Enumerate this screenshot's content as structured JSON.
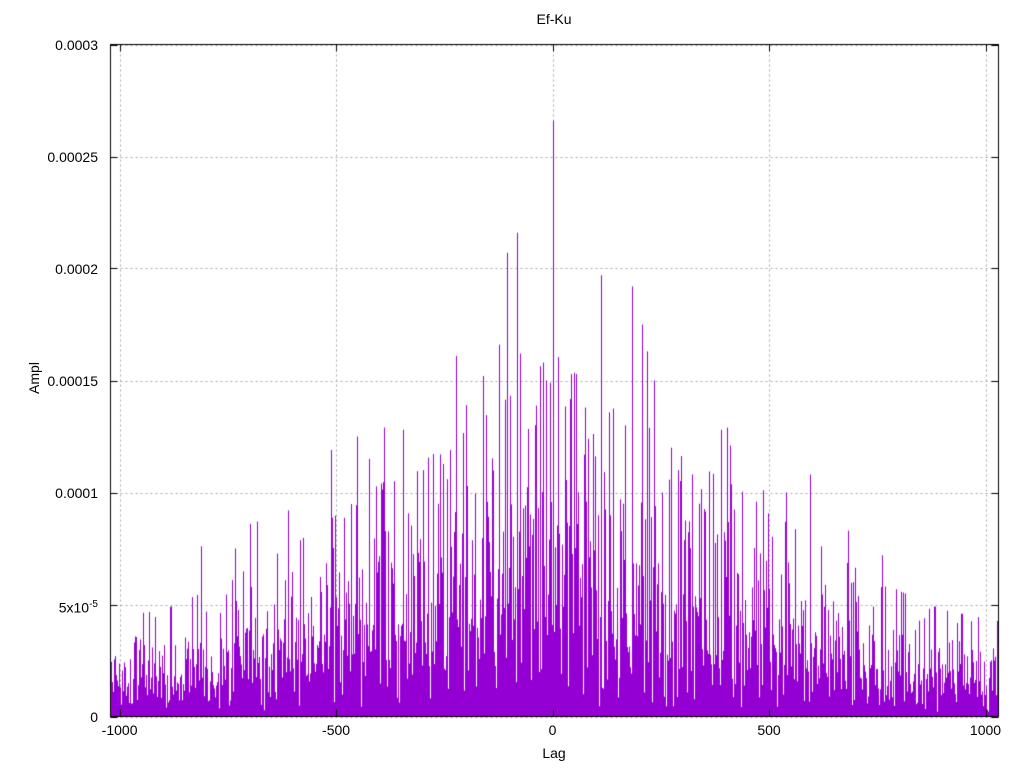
{
  "chart_data": {
    "type": "impulses",
    "title": "Ef-Ku",
    "xlabel": "Lag",
    "ylabel": "Ampl",
    "xlim": [
      -1021,
      1030
    ],
    "ylim": [
      0,
      0.0003
    ],
    "xticks": [
      {
        "v": -1000,
        "label": "-1000"
      },
      {
        "v": -500,
        "label": "-500"
      },
      {
        "v": 0,
        "label": "0"
      },
      {
        "v": 500,
        "label": "500"
      },
      {
        "v": 1000,
        "label": "1000"
      }
    ],
    "yticks": [
      {
        "v": 0,
        "label": "0"
      },
      {
        "v": 5e-05,
        "label": "5x10^-5"
      },
      {
        "v": 0.0001,
        "label": "0.0001"
      },
      {
        "v": 0.00015,
        "label": "0.00015"
      },
      {
        "v": 0.0002,
        "label": "0.0002"
      },
      {
        "v": 0.00025,
        "label": "0.00025"
      },
      {
        "v": 0.0003,
        "label": "0.0003"
      }
    ],
    "grid": {
      "show": true,
      "dash": [
        2,
        3
      ]
    },
    "legend": "none",
    "colors": {
      "line": "#9400d3",
      "grid": "#a8a8a8",
      "border": "#000000",
      "background": "#ffffff",
      "text": "#000000"
    },
    "series": {
      "name": "Ef-Ku",
      "style": "impulses",
      "lag_step": 1,
      "generator": {
        "distribution": "exponential-weibull",
        "seed": 42,
        "shape": 0.85,
        "scale_factor": 1.08,
        "cap_ratio": 3.4
      },
      "mean_envelope": [
        [
          -1021,
          1.3e-05
        ],
        [
          -900,
          1.4e-05
        ],
        [
          -800,
          1.65e-05
        ],
        [
          -700,
          1.95e-05
        ],
        [
          -600,
          2.25e-05
        ],
        [
          -500,
          2.65e-05
        ],
        [
          -400,
          3.05e-05
        ],
        [
          -300,
          3.35e-05
        ],
        [
          -200,
          3.75e-05
        ],
        [
          -100,
          4.2e-05
        ],
        [
          -30,
          4.6e-05
        ],
        [
          0,
          4.8e-05
        ],
        [
          30,
          4.6e-05
        ],
        [
          100,
          4.3e-05
        ],
        [
          200,
          3.9e-05
        ],
        [
          300,
          3.4e-05
        ],
        [
          400,
          3.1e-05
        ],
        [
          500,
          2.7e-05
        ],
        [
          600,
          2.3e-05
        ],
        [
          700,
          1.95e-05
        ],
        [
          800,
          1.65e-05
        ],
        [
          900,
          1.4e-05
        ],
        [
          1030,
          1.25e-05
        ]
      ],
      "peaks": [
        [
          -812,
          7.6e-05
        ],
        [
          -733,
          7.5e-05
        ],
        [
          -699,
          8.6e-05
        ],
        [
          -683,
          8.7e-05
        ],
        [
          -612,
          9.2e-05
        ],
        [
          -512,
          0.000119
        ],
        [
          -452,
          0.000125
        ],
        [
          -424,
          0.000115
        ],
        [
          -390,
          0.000129
        ],
        [
          -367,
          0.000105
        ],
        [
          -346,
          0.000128
        ],
        [
          -300,
          0.00011
        ],
        [
          -261,
          0.000117
        ],
        [
          -222,
          0.000161
        ],
        [
          -200,
          0.000139
        ],
        [
          -161,
          0.000152
        ],
        [
          -124,
          0.000166
        ],
        [
          -106,
          0.000207
        ],
        [
          -83,
          0.000216
        ],
        [
          -76,
          0.000162
        ],
        [
          -40,
          0.00013
        ],
        [
          -16,
          0.00015
        ],
        [
          -5,
          0.000149
        ],
        [
          0,
          0.000266
        ],
        [
          37,
          8.5e-05
        ],
        [
          55,
          0.000121
        ],
        [
          83,
          0.000124
        ],
        [
          113,
          0.000197
        ],
        [
          140,
          0.000125
        ],
        [
          167,
          0.00013
        ],
        [
          183,
          0.000192
        ],
        [
          206,
          0.000175
        ],
        [
          218,
          0.000163
        ],
        [
          234,
          0.00015
        ],
        [
          253,
          0.0001
        ],
        [
          290,
          0.00011
        ],
        [
          338,
          9.5e-05
        ],
        [
          389,
          0.000128
        ],
        [
          402,
          0.000129
        ],
        [
          411,
          0.000121
        ],
        [
          486,
          0.000101
        ],
        [
          539,
          0.0001
        ],
        [
          595,
          0.000108
        ],
        [
          683,
          8.3e-05
        ],
        [
          760,
          7.2e-05
        ]
      ]
    }
  }
}
